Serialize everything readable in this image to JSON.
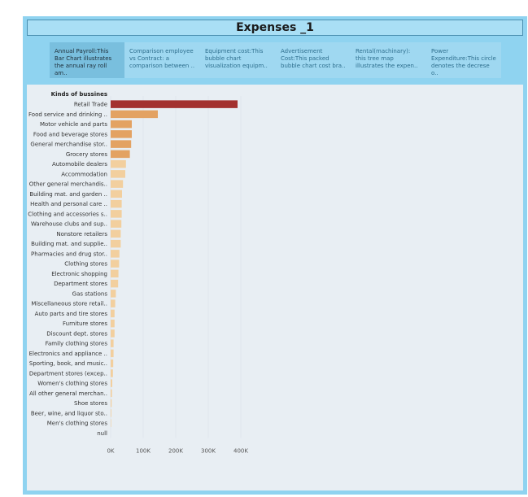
{
  "dashboard": {
    "title": "Expenses _1",
    "colors": {
      "background": "#8fd3f0",
      "panel": "#e8eef3",
      "bar_top": "#a3312f",
      "bar_orange": "#e3a262",
      "bar_light": "#f2cf9e"
    },
    "tabs": [
      {
        "line1": "Annual Payroll:This",
        "line2": "Bar Chart illustrates",
        "line3": "the annual ray roll am..",
        "active": true
      },
      {
        "line1": "Comparison employee",
        "line2": "vs Contract: a",
        "line3": "comparison between ..",
        "active": false
      },
      {
        "line1": "Equipment cost:This",
        "line2": "bubble chart",
        "line3": "visualization equipm..",
        "active": false
      },
      {
        "line1": "Advertisement",
        "line2": "Cost:This packed",
        "line3": "bubble chart cost bra..",
        "active": false
      },
      {
        "line1": "Rental(machinary):",
        "line2": "this tree map",
        "line3": "illustrates the expen..",
        "active": false
      },
      {
        "line1": "Power",
        "line2": "Expenditure:This circle",
        "line3": "denotes the decrese o..",
        "active": false
      }
    ]
  },
  "chart_data": {
    "type": "bar",
    "orientation": "horizontal",
    "row_header": "Kinds of bussines",
    "categories": [
      "Retail Trade",
      "Food service and drinking ..",
      "Motor vehicle and parts",
      "Food and beverage stores",
      "General merchandise stor..",
      "Grocery stores",
      "Automobile dealers",
      "Accommodation",
      "Other general merchandis..",
      "Building mat. and garden ..",
      "Health and personal care ..",
      "Clothing and accessories s..",
      "Warehouse clubs and sup..",
      "Nonstore retailers",
      "Building mat. and supplie..",
      "Pharmacies and drug stor..",
      "Clothing stores",
      "Electronic shopping",
      "Department stores",
      "Gas stations",
      "Miscellaneous store retail..",
      "Auto parts and tire stores",
      "Furniture stores",
      "Discount dept. stores",
      "Family clothing stores",
      "Electronics and appliance ..",
      "Sporting, book, and music..",
      "Department stores (excep..",
      "Women's clothing stores",
      "All other general merchan..",
      "Shoe stores",
      "Beer, wine, and liquor sto..",
      "Men's clothing stores",
      "null"
    ],
    "values": [
      390000,
      145000,
      65000,
      65000,
      63000,
      59000,
      47000,
      45000,
      38000,
      35000,
      34000,
      34000,
      33000,
      31000,
      31000,
      27000,
      26000,
      24000,
      23000,
      16000,
      14000,
      12000,
      12000,
      12000,
      9000,
      9000,
      8000,
      7000,
      5000,
      4000,
      3000,
      2000,
      1500,
      0
    ],
    "xticks": [
      "0K",
      "100K",
      "200K",
      "300K",
      "400K"
    ],
    "xlim": [
      0,
      400000
    ],
    "grid": true
  }
}
